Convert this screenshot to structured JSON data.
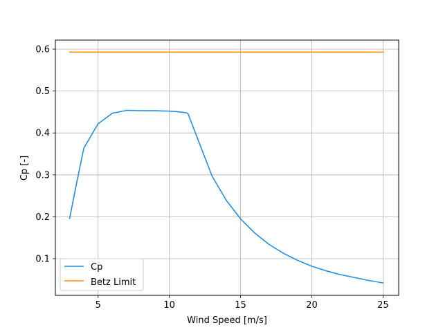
{
  "chart_data": {
    "type": "line",
    "title": "",
    "xlabel": "Wind Speed [m/s]",
    "ylabel": "Cp [-]",
    "xlim": [
      2.0,
      26.1
    ],
    "ylim": [
      0.0125,
      0.6215
    ],
    "xticks": [
      5,
      10,
      15,
      20,
      25
    ],
    "yticks": [
      0.1,
      0.2,
      0.3,
      0.4,
      0.5,
      0.6
    ],
    "xtick_labels": [
      "5",
      "10",
      "15",
      "20",
      "25"
    ],
    "ytick_labels": [
      "0.1",
      "0.2",
      "0.3",
      "0.4",
      "0.5",
      "0.6"
    ],
    "grid": true,
    "legend_position": "lower-left",
    "series": [
      {
        "name": "Cp",
        "color": "#1e8ee6",
        "x": [
          3.0,
          3.5,
          4.0,
          5.0,
          6.0,
          7.0,
          8.0,
          9.0,
          10.0,
          10.5,
          11.0,
          11.3,
          12.0,
          13.0,
          14.0,
          15.0,
          16.0,
          17.0,
          18.0,
          19.0,
          20.0,
          21.0,
          22.0,
          23.0,
          24.0,
          25.0
        ],
        "y": [
          0.196,
          0.282,
          0.364,
          0.422,
          0.447,
          0.454,
          0.453,
          0.453,
          0.452,
          0.451,
          0.449,
          0.447,
          0.385,
          0.297,
          0.239,
          0.195,
          0.161,
          0.134,
          0.113,
          0.096,
          0.082,
          0.071,
          0.062,
          0.055,
          0.048,
          0.042
        ]
      },
      {
        "name": "Betz Limit",
        "color": "#ff8c00",
        "x": [
          3.0,
          25.0
        ],
        "y": [
          0.593,
          0.593
        ]
      }
    ]
  }
}
